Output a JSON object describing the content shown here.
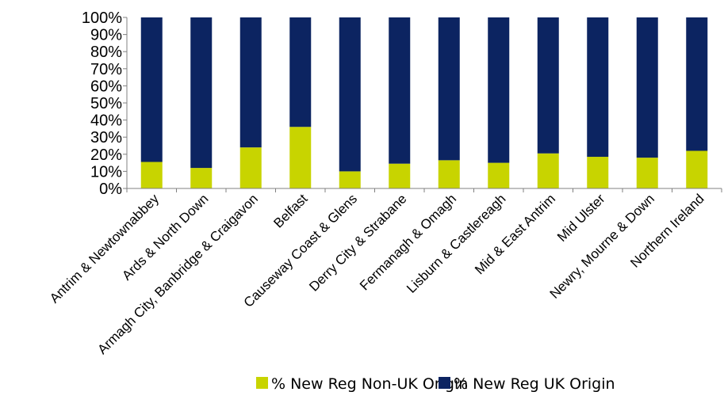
{
  "chart_data": {
    "type": "bar",
    "stacked": true,
    "percent_stacked": true,
    "categories": [
      "Antrim & Newtownabbey",
      "Ards & North Down",
      "Armagh City, Banbridge & Craigavon",
      "Belfast",
      "Causeway Coast & Glens",
      "Derry City & Strabane",
      "Fermanagh & Omagh",
      "Lisburn & Castlereagh",
      "Mid & East Antrim",
      "Mid Ulster",
      "Newry, Mourne & Down",
      "Northern Ireland"
    ],
    "series": [
      {
        "name": "% New Reg Non-UK Origin",
        "color": "#c8d400",
        "values": [
          15.5,
          12,
          24,
          36,
          10,
          14.5,
          16.5,
          15,
          20.5,
          18.5,
          18,
          22
        ]
      },
      {
        "name": "% New Reg UK Origin",
        "color": "#0c2461",
        "values": [
          84.5,
          88,
          76,
          64,
          90,
          85.5,
          83.5,
          85,
          79.5,
          81.5,
          82,
          78
        ]
      }
    ],
    "ylim": [
      0,
      100
    ],
    "yticks": [
      "0%",
      "10%",
      "20%",
      "30%",
      "40%",
      "50%",
      "60%",
      "70%",
      "80%",
      "90%",
      "100%"
    ],
    "title": "",
    "xlabel": "",
    "ylabel": "",
    "grid": false,
    "legend_position": "bottom"
  }
}
